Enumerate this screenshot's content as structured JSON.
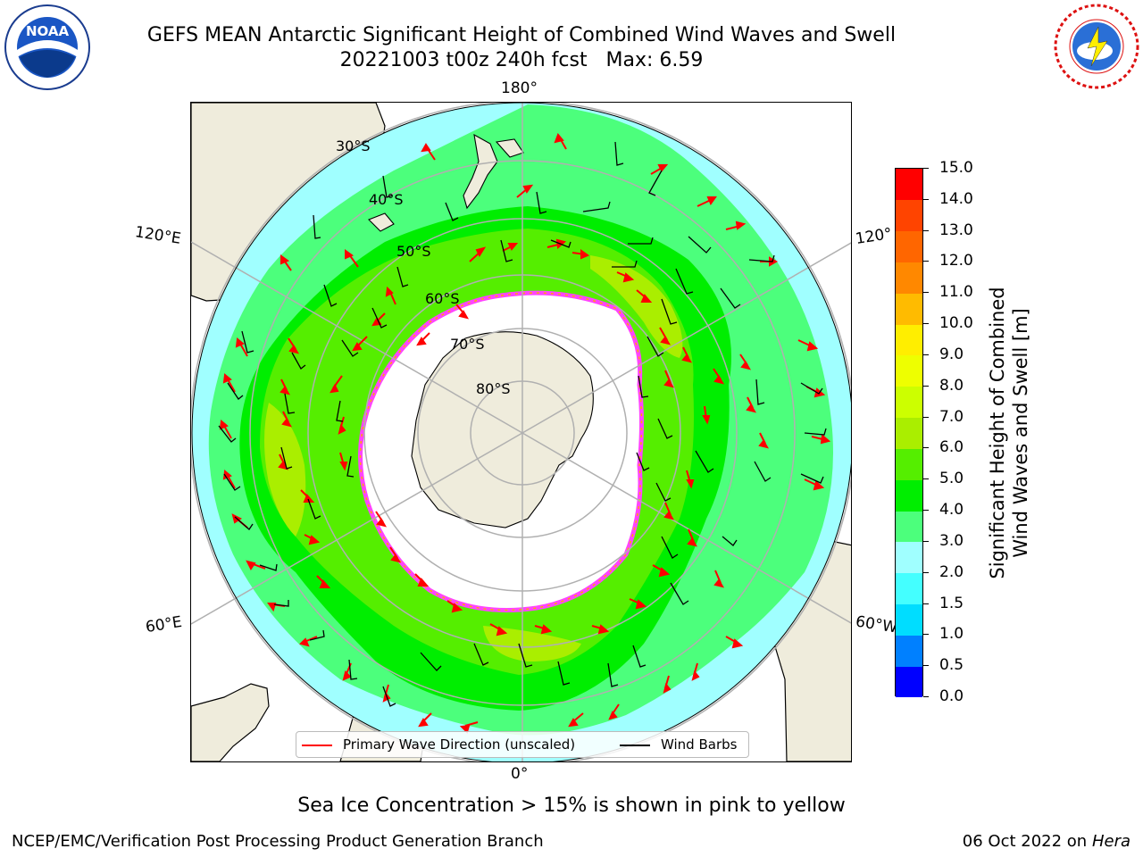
{
  "title": {
    "line1": "GEFS MEAN Antarctic Significant Height of Combined Wind Waves and Swell",
    "line2": "20221003 t00z 240h fcst   Max: 6.59"
  },
  "logos": {
    "left": {
      "name": "noaa-logo",
      "text": "NOAA",
      "ring_text": "NATIONAL OCEANIC AND ATMOSPHERIC ADMINISTRATION · U.S. DEPARTMENT OF COMMERCE"
    },
    "right": {
      "name": "nws-logo",
      "ring_text": "NATIONAL WEATHER SERVICE"
    }
  },
  "map": {
    "projection": "south-polar-stereographic",
    "longitude_labels": {
      "top": "180°",
      "bottom": "0°",
      "upper_left": "120°E",
      "lower_left": "60°E",
      "upper_right": "120°",
      "lower_right": "60°W"
    },
    "latitude_labels": [
      "30°S",
      "40°S",
      "50°S",
      "60°S",
      "70°S",
      "80°S"
    ],
    "colors": {
      "land": "#efecdc",
      "sea_ice": "#ffffff",
      "graticule": "#b0b0b0",
      "coast": "#000000",
      "wave_arrow": "#ff0000",
      "wind_barb": "#000000",
      "ice_edge": [
        "#ff44ff",
        "#ff2222",
        "#ffaa00"
      ]
    },
    "legend": {
      "primary_wave_label": "Primary Wave Direction (unscaled)",
      "wind_barbs_label": "Wind Barbs"
    },
    "max_value": 6.59
  },
  "colorbar": {
    "title_line1": "Significant Height of Combined",
    "title_line2": "Wind Waves and Swell [m]",
    "ticks": [
      "0.0",
      "0.5",
      "1.0",
      "1.5",
      "2.0",
      "3.0",
      "4.0",
      "5.0",
      "6.0",
      "7.0",
      "8.0",
      "9.0",
      "10.0",
      "11.0",
      "12.0",
      "13.0",
      "14.0",
      "15.0"
    ],
    "colors": [
      "#0000ff",
      "#0080ff",
      "#00ddff",
      "#44ffff",
      "#a0ffff",
      "#4cff7c",
      "#00ee00",
      "#55ee00",
      "#aaee00",
      "#ccff00",
      "#eeff00",
      "#ffee00",
      "#ffbb00",
      "#ff8800",
      "#ff6600",
      "#ff4400",
      "#ff0000"
    ]
  },
  "footer": {
    "note": "Sea Ice Concentration > 15% is shown in pink to yellow",
    "left": "NCEP/EMC/Verification Post Processing Product Generation Branch",
    "right_prefix": "06 Oct 2022 on ",
    "right_machine": "Hera"
  }
}
